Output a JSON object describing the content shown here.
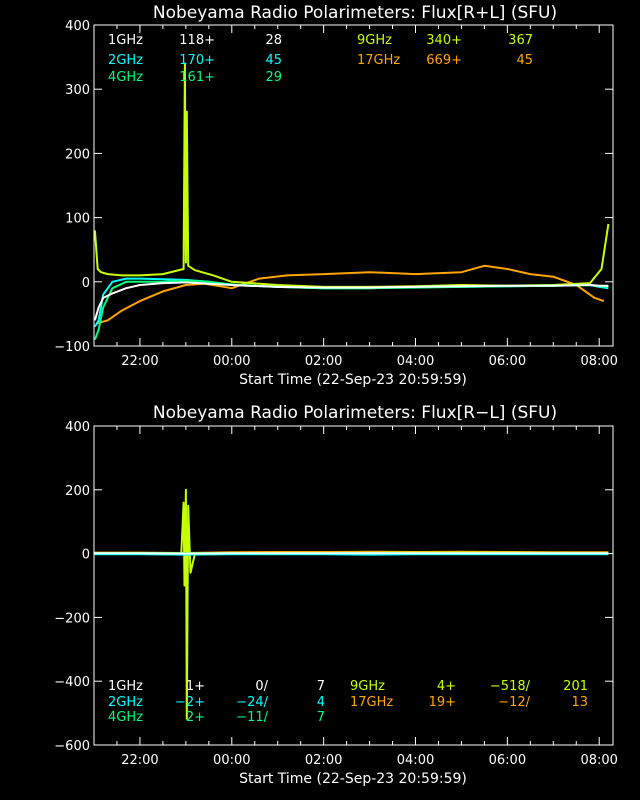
{
  "colors": {
    "1GHz": "#ffffff",
    "2GHz": "#00ffff",
    "4GHz": "#00ff7f",
    "9GHz": "#c8ff00",
    "17GHz": "#ffa500"
  },
  "chart_data": [
    {
      "type": "line",
      "title": "Nobeyama Radio Polarimeters: Flux[R+L] (SFU)",
      "xlabel": "Start Time (22-Sep-23 20:59:59)",
      "xticks": [
        "22:00",
        "00:00",
        "02:00",
        "04:00",
        "06:00",
        "08:00"
      ],
      "xtick_hours": [
        1.0,
        3.0,
        5.0,
        7.0,
        9.0,
        11.0
      ],
      "xlim_hours": [
        0,
        11.3
      ],
      "ylim": [
        -100,
        400
      ],
      "yticks": [
        -100,
        0,
        100,
        200,
        300,
        400
      ],
      "legend": [
        {
          "band": "1GHz",
          "v1": "118+",
          "v2": "28",
          "color": "#ffffff"
        },
        {
          "band": "2GHz",
          "v1": "170+",
          "v2": "45",
          "color": "#00ffff"
        },
        {
          "band": "4GHz",
          "v1": "161+",
          "v2": "29",
          "color": "#00ff7f"
        },
        {
          "band": "9GHz",
          "v1": "340+",
          "v2": "367",
          "color": "#c8ff00"
        },
        {
          "band": "17GHz",
          "v1": "669+",
          "v2": "45",
          "color": "#ffa500"
        }
      ],
      "series": [
        {
          "name": "17GHz",
          "color": "#ffa500",
          "x": [
            0.05,
            0.3,
            0.6,
            1.0,
            1.5,
            2.0,
            2.4,
            3.0,
            3.6,
            4.2,
            5.0,
            6.0,
            7.0,
            8.0,
            8.5,
            9.0,
            9.5,
            10.0,
            10.5,
            10.9,
            11.1
          ],
          "y": [
            -65,
            -60,
            -45,
            -30,
            -15,
            -5,
            -3,
            -10,
            5,
            10,
            12,
            15,
            12,
            15,
            25,
            20,
            12,
            8,
            -5,
            -25,
            -30
          ]
        },
        {
          "name": "9GHz",
          "color": "#c8ff00",
          "x": [
            0.02,
            0.08,
            0.15,
            0.3,
            0.6,
            1.0,
            1.5,
            1.95,
            1.98,
            2.0,
            2.02,
            2.05,
            2.2,
            2.6,
            3.0,
            4.0,
            5.0,
            6.0,
            7.0,
            8.0,
            9.0,
            10.0,
            10.8,
            11.05,
            11.2
          ],
          "y": [
            80,
            20,
            15,
            12,
            10,
            10,
            12,
            20,
            340,
            30,
            265,
            25,
            18,
            10,
            0,
            -5,
            -8,
            -8,
            -7,
            -5,
            -6,
            -5,
            -2,
            20,
            90
          ]
        },
        {
          "name": "2GHz",
          "color": "#00ffff",
          "x": [
            0.02,
            0.1,
            0.2,
            0.4,
            0.7,
            1.0,
            1.5,
            2.0,
            2.5,
            3.0,
            4.0,
            5.0,
            6.0,
            7.0,
            8.0,
            9.0,
            10.0,
            10.8,
            11.0,
            11.2
          ],
          "y": [
            -70,
            -60,
            -20,
            0,
            5,
            5,
            4,
            3,
            0,
            -5,
            -8,
            -10,
            -10,
            -8,
            -8,
            -7,
            -6,
            -5,
            -8,
            -10
          ]
        },
        {
          "name": "4GHz",
          "color": "#00ff7f",
          "x": [
            0.02,
            0.1,
            0.2,
            0.4,
            0.7,
            1.0,
            1.5,
            2.0,
            2.5,
            3.0,
            4.0,
            5.0,
            6.0,
            7.0,
            8.0,
            9.0,
            10.0,
            10.8,
            11.0,
            11.2
          ],
          "y": [
            -90,
            -75,
            -40,
            -10,
            0,
            0,
            0,
            2,
            0,
            -4,
            -8,
            -10,
            -10,
            -9,
            -8,
            -7,
            -6,
            -5,
            -7,
            -8
          ]
        },
        {
          "name": "1GHz",
          "color": "#ffffff",
          "x": [
            0.02,
            0.1,
            0.2,
            0.4,
            0.7,
            1.0,
            1.5,
            2.0,
            2.5,
            3.0,
            4.0,
            5.0,
            6.0,
            7.0,
            8.0,
            9.0,
            10.0,
            10.8,
            11.0,
            11.2
          ],
          "y": [
            -60,
            -40,
            -25,
            -18,
            -10,
            -5,
            -2,
            -1,
            -3,
            -5,
            -8,
            -9,
            -9,
            -8,
            -7,
            -6,
            -6,
            -5,
            -6,
            -6
          ]
        }
      ]
    },
    {
      "type": "line",
      "title": "Nobeyama Radio Polarimeters: Flux[R−L] (SFU)",
      "xlabel": "Start Time (22-Sep-23 20:59:59)",
      "xticks": [
        "22:00",
        "00:00",
        "02:00",
        "04:00",
        "06:00",
        "08:00"
      ],
      "xtick_hours": [
        1.0,
        3.0,
        5.0,
        7.0,
        9.0,
        11.0
      ],
      "xlim_hours": [
        0,
        11.3
      ],
      "ylim": [
        -600,
        400
      ],
      "yticks": [
        -600,
        -400,
        -200,
        0,
        200,
        400
      ],
      "legend": [
        {
          "band": "1GHz",
          "v1": "1+",
          "v2": "0/",
          "v3": "7",
          "color": "#ffffff"
        },
        {
          "band": "2GHz",
          "v1": "−2+",
          "v2": "−24/",
          "v3": "4",
          "color": "#00ffff"
        },
        {
          "band": "4GHz",
          "v1": "2+",
          "v2": "−11/",
          "v3": "7",
          "color": "#00ff7f"
        },
        {
          "band": "9GHz",
          "v1": "4+",
          "v2": "−518/",
          "v3": "201",
          "color": "#c8ff00"
        },
        {
          "band": "17GHz",
          "v1": "19+",
          "v2": "−12/",
          "v3": "13",
          "color": "#ffa500"
        }
      ],
      "series": [
        {
          "name": "17GHz",
          "color": "#ffa500",
          "x": [
            0.0,
            1.0,
            2.0,
            3.0,
            4.0,
            5.0,
            6.0,
            7.0,
            8.0,
            9.0,
            10.0,
            11.2
          ],
          "y": [
            3,
            3,
            2,
            4,
            5,
            5,
            6,
            5,
            6,
            5,
            4,
            4
          ]
        },
        {
          "name": "9GHz",
          "color": "#c8ff00",
          "x": [
            0.0,
            1.0,
            1.9,
            1.95,
            1.97,
            2.0,
            2.02,
            2.05,
            2.1,
            2.2,
            3.0,
            5.0,
            7.0,
            9.0,
            11.2
          ],
          "y": [
            0,
            0,
            0,
            160,
            -100,
            200,
            -518,
            150,
            -60,
            0,
            2,
            2,
            3,
            3,
            2
          ]
        },
        {
          "name": "2GHz",
          "color": "#00ffff",
          "x": [
            0.0,
            1.0,
            2.0,
            3.0,
            4.0,
            5.0,
            6.0,
            7.0,
            8.0,
            9.0,
            10.0,
            11.2
          ],
          "y": [
            -2,
            -2,
            -3,
            -2,
            -2,
            -2,
            -3,
            -2,
            -2,
            -2,
            -2,
            -2
          ]
        },
        {
          "name": "4GHz",
          "color": "#00ff7f",
          "x": [
            0.0,
            1.0,
            2.0,
            3.0,
            4.0,
            5.0,
            6.0,
            7.0,
            8.0,
            9.0,
            10.0,
            11.2
          ],
          "y": [
            2,
            2,
            1,
            2,
            1,
            2,
            2,
            2,
            2,
            2,
            2,
            2
          ]
        },
        {
          "name": "1GHz",
          "color": "#ffffff",
          "x": [
            0.0,
            1.0,
            2.0,
            3.0,
            4.0,
            5.0,
            6.0,
            7.0,
            8.0,
            9.0,
            10.0,
            11.2
          ],
          "y": [
            1,
            1,
            0,
            1,
            1,
            1,
            1,
            1,
            1,
            1,
            1,
            1
          ]
        }
      ]
    }
  ]
}
